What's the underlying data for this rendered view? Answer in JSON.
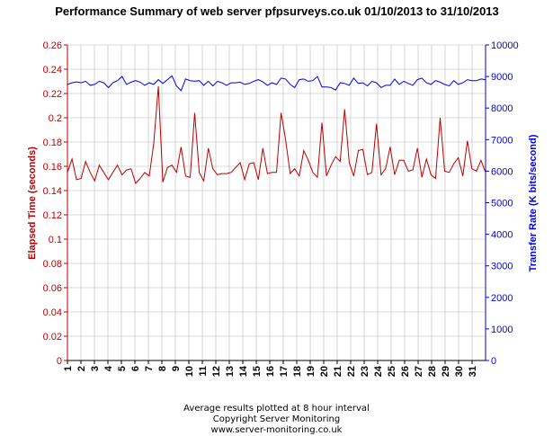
{
  "chart_data": {
    "type": "line",
    "title": "Performance Summary of web server  pfpsurveys.co.uk 01/10/2013 to 31/10/2013",
    "xlabel": "",
    "ylabel": "Elapsed Time (seconds)",
    "y2label": "Transfer Rate (K bits/second)",
    "ylim": [
      0,
      0.26
    ],
    "y2lim": [
      0,
      10000
    ],
    "y_ticks": [
      "0",
      "0.02",
      "0.04",
      "0.06",
      "0.08",
      "0.1",
      "0.12",
      "0.14",
      "0.16",
      "0.18",
      "0.2",
      "0.22",
      "0.24",
      "0.26"
    ],
    "y2_ticks": [
      "0",
      "1000",
      "2000",
      "3000",
      "4000",
      "5000",
      "6000",
      "7000",
      "8000",
      "9000",
      "10000"
    ],
    "x_ticks": [
      "1",
      "2",
      "3",
      "4",
      "5",
      "6",
      "7",
      "8",
      "9",
      "10",
      "11",
      "12",
      "13",
      "14",
      "15",
      "16",
      "17",
      "18",
      "19",
      "20",
      "21",
      "22",
      "23",
      "24",
      "25",
      "26",
      "27",
      "28",
      "29",
      "30",
      "31"
    ],
    "grid": true,
    "legend": "none",
    "colors": {
      "elapsed": "#bb0000",
      "transfer": "#0000ee",
      "axis_left": "#bb0000",
      "axis_right": "#0000ee",
      "grid": "#b8b8b8"
    },
    "series": [
      {
        "axis": "left",
        "color": "#bb0000",
        "values": [
          0.155,
          0.166,
          0.149,
          0.15,
          0.164,
          0.155,
          0.148,
          0.161,
          0.155,
          0.149,
          0.155,
          0.161,
          0.153,
          0.157,
          0.158,
          0.146,
          0.15,
          0.155,
          0.152,
          0.179,
          0.226,
          0.147,
          0.159,
          0.161,
          0.155,
          0.176,
          0.152,
          0.151,
          0.204,
          0.155,
          0.148,
          0.175,
          0.158,
          0.153,
          0.154,
          0.154,
          0.155,
          0.159,
          0.163,
          0.149,
          0.162,
          0.163,
          0.149,
          0.175,
          0.154,
          0.155,
          0.155,
          0.204,
          0.182,
          0.154,
          0.158,
          0.152,
          0.173,
          0.165,
          0.155,
          0.151,
          0.196,
          0.152,
          0.161,
          0.168,
          0.164,
          0.207,
          0.163,
          0.152,
          0.173,
          0.174,
          0.153,
          0.155,
          0.195,
          0.153,
          0.158,
          0.176,
          0.153,
          0.165,
          0.165,
          0.156,
          0.157,
          0.175,
          0.151,
          0.166,
          0.153,
          0.15,
          0.2,
          0.156,
          0.155,
          0.162,
          0.167,
          0.152,
          0.181,
          0.158,
          0.156,
          0.165,
          0.155
        ]
      },
      {
        "axis": "right",
        "color": "#0000ee",
        "values": [
          8750,
          8800,
          8830,
          8800,
          8850,
          8720,
          8750,
          8850,
          8800,
          8650,
          8800,
          8870,
          9000,
          8750,
          8820,
          8870,
          8820,
          8720,
          8800,
          8750,
          8900,
          8780,
          8900,
          9020,
          8700,
          8550,
          8920,
          8870,
          8850,
          8870,
          8720,
          8850,
          8700,
          8850,
          8800,
          8720,
          8800,
          8800,
          8820,
          8750,
          8780,
          8850,
          8900,
          8830,
          8720,
          8800,
          8750,
          8950,
          8920,
          8750,
          8650,
          8900,
          8920,
          8850,
          8870,
          9000,
          8670,
          8670,
          8650,
          8570,
          8800,
          8780,
          8720,
          8950,
          8780,
          8800,
          8700,
          8850,
          8800,
          8650,
          8720,
          8720,
          8920,
          8750,
          8850,
          8780,
          8720,
          8900,
          8950,
          8800,
          8750,
          8870,
          8820,
          8750,
          8700,
          8870,
          8750,
          8800,
          8900,
          8870,
          8870,
          8920,
          8900
        ]
      }
    ]
  },
  "footer": {
    "line1": "Average results plotted at 8 hour interval",
    "line2": "Copyright Server Monitoring",
    "line3": "www.server-monitoring.co.uk"
  }
}
